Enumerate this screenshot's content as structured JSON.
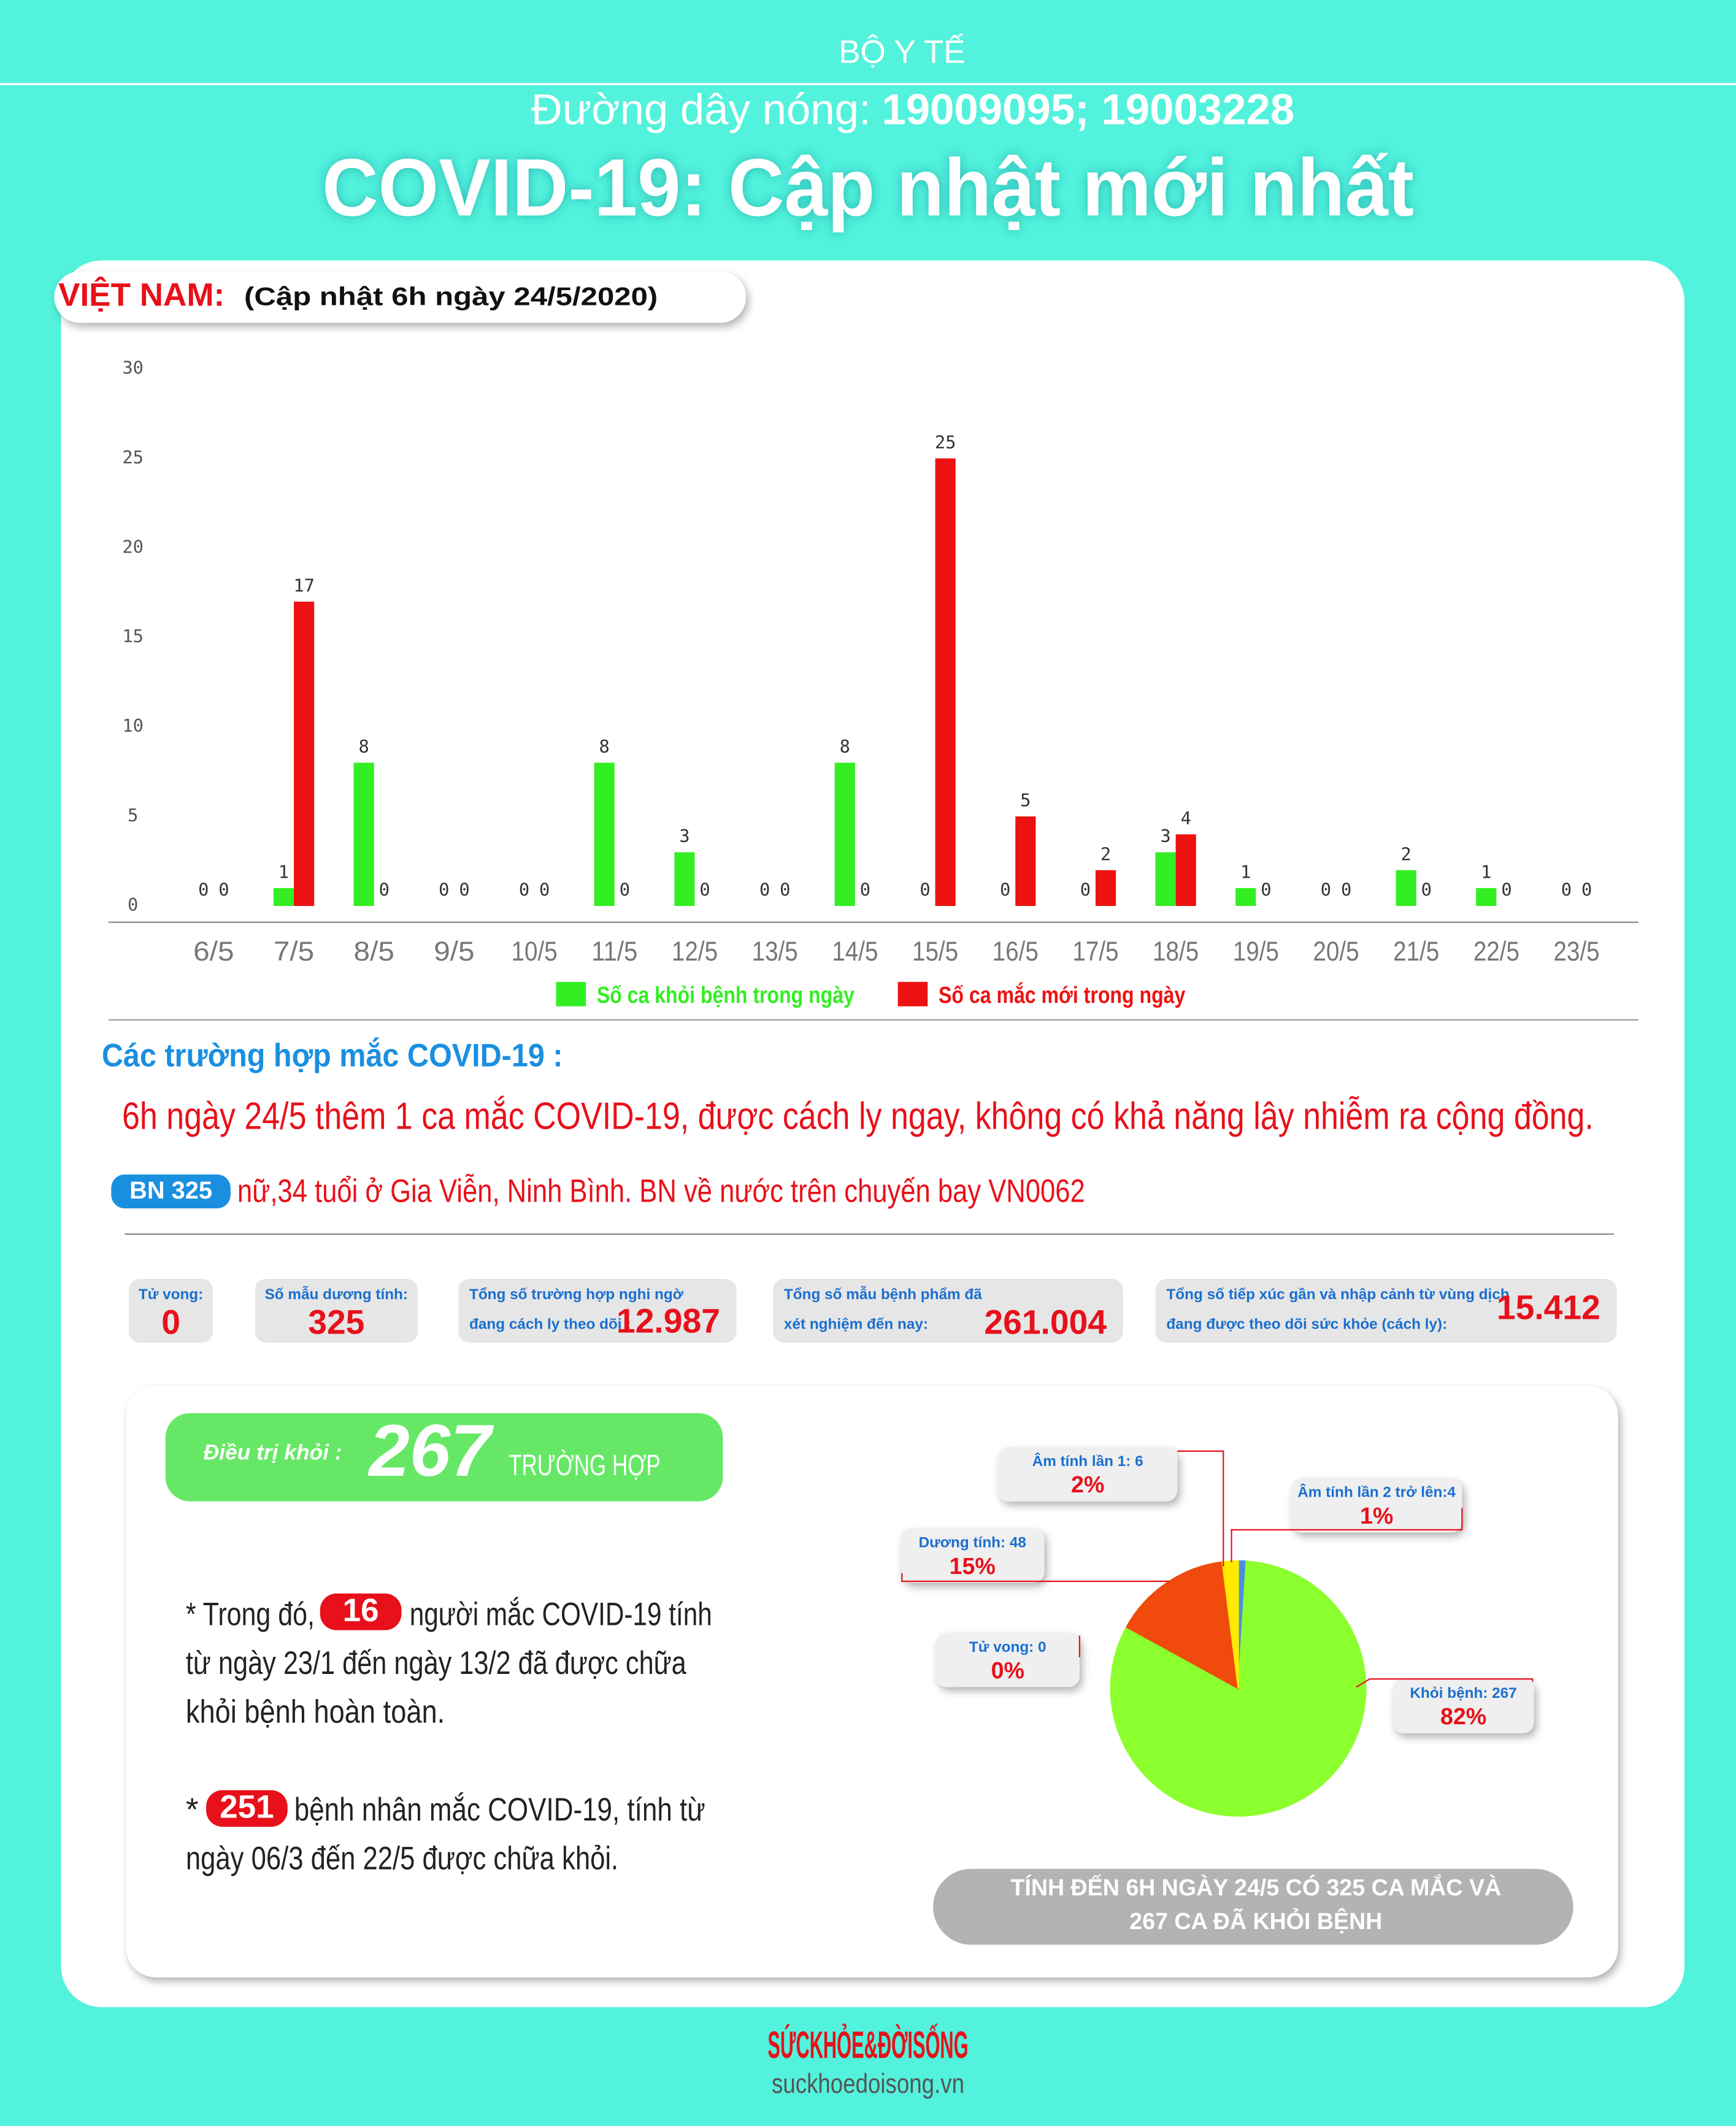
{
  "header": {
    "org": "BỘ Y TẾ",
    "hotline_label": "Đường dây nóng:",
    "hotline_numbers": "19009095; 19003228",
    "title": "COVID-19: Cập nhật mới nhất"
  },
  "panel": {
    "country": "VIỆT NAM:",
    "update": "(Cập nhật 6h ngày 24/5/2020)"
  },
  "chart_data": [
    {
      "type": "bar",
      "categories": [
        "6/5",
        "7/5",
        "8/5",
        "9/5",
        "10/5",
        "11/5",
        "12/5",
        "13/5",
        "14/5",
        "15/5",
        "16/5",
        "17/5",
        "18/5",
        "19/5",
        "20/5",
        "21/5",
        "22/5",
        "23/5"
      ],
      "series": [
        {
          "name": "Số ca khỏi bệnh trong ngày",
          "color": "#33ee22",
          "values": [
            0,
            1,
            8,
            0,
            0,
            8,
            3,
            0,
            8,
            0,
            0,
            0,
            3,
            1,
            0,
            2,
            1,
            0
          ]
        },
        {
          "name": "Số ca mắc mới  trong ngày",
          "color": "#ee1111",
          "values": [
            0,
            17,
            0,
            0,
            0,
            0,
            0,
            0,
            0,
            25,
            5,
            2,
            4,
            0,
            0,
            0,
            0,
            0
          ]
        }
      ],
      "ylim": [
        0,
        30
      ],
      "yticks": [
        0,
        5,
        10,
        15,
        20,
        25,
        30
      ],
      "grid": false,
      "show_values": true,
      "legend": "bottom"
    },
    {
      "type": "pie",
      "categories": [
        "Âm tính lần 2 trở lên:4",
        "Khỏi bệnh: 267",
        "Tử vong: 0",
        "Dương tính: 48",
        "Âm tính lần 1: 6"
      ],
      "values": [
        1,
        82,
        0,
        15,
        2
      ],
      "value_labels": [
        "1%",
        "82%",
        "0%",
        "15%",
        "2%"
      ],
      "colors": [
        "#4a8fe0",
        "#8cff2e",
        "#999999",
        "#f04a0c",
        "#ffea00"
      ]
    }
  ],
  "cases": {
    "heading": "Các trường hợp mắc COVID-19 :",
    "news": "6h ngày 24/5 thêm 1 ca mắc COVID-19, được cách ly ngay, không có khả năng lây nhiễm ra cộng đồng.",
    "patient_id": "BN 325",
    "patient_info": "nữ,34 tuổi ở Gia Viễn, Ninh Bình. BN về nước trên chuyến bay VN0062"
  },
  "stats": [
    {
      "label_lines": [
        "Tử vong:"
      ],
      "value": "0"
    },
    {
      "label_lines": [
        "Số mẫu dương tính:"
      ],
      "value": "325"
    },
    {
      "label_lines": [
        "Tổng số trường hợp nghi ngờ",
        "đang cách ly theo dõi :"
      ],
      "value": "12.987"
    },
    {
      "label_lines": [
        "Tổng số mẫu bệnh phẩm đã",
        "xét nghiệm đến nay:"
      ],
      "value": "261.004"
    },
    {
      "label_lines": [
        "Tổng số tiếp xúc gần và nhập cảnh từ vùng dịch",
        "đang được theo dõi sức khỏe (cách ly):"
      ],
      "value": "15.412"
    }
  ],
  "recovered": {
    "label": "Điều trị khỏi :",
    "value": "267",
    "unit": "TRƯỜNG HỢP"
  },
  "notes": [
    {
      "prefix": "* Trong đó,",
      "badge": "16",
      "lines": [
        "người mắc COVID-19 tính",
        "từ ngày 23/1 đến ngày 13/2 đã được chữa",
        "khỏi bệnh hoàn toàn."
      ]
    },
    {
      "prefix": "*",
      "badge": "251",
      "lines": [
        "bệnh nhân  mắc COVID-19, tính từ",
        "ngày 06/3 đến 22/5 được chữa khỏi."
      ]
    }
  ],
  "summary": [
    "TÍNH ĐẾN 6H NGÀY 24/5 CÓ 325 CA MẮC VÀ",
    "267 CA ĐÃ KHỎI BỆNH"
  ],
  "footer": {
    "logo": "SỨCKHỎE&ĐỜISỐNG",
    "site": "suckhoedoisong.vn"
  }
}
